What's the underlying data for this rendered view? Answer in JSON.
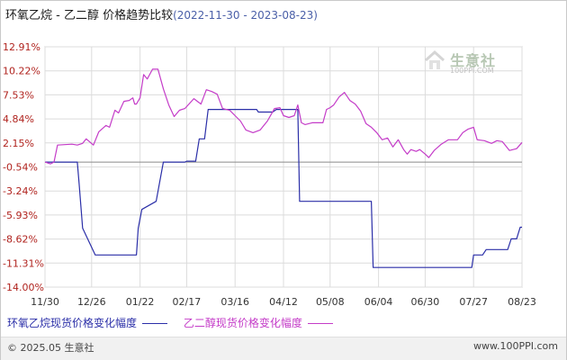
{
  "title": {
    "main": "环氧乙烷 - 乙二醇 价格趋势比较",
    "date_range": "(2022-11-30 - 2023-08-23)"
  },
  "watermark": {
    "text": "生意社",
    "url": "100PPI.COM"
  },
  "footer": {
    "copyright": "© 2025.05 生意社",
    "url": "www.100PPI.com"
  },
  "colors": {
    "series_1": "#2b2fa8",
    "series_2": "#c43cc8",
    "grid": "#dcdcdc",
    "zero_line": "#8a8a8a"
  },
  "chart_data": {
    "type": "line",
    "x_tick_labels": [
      "11/30",
      "12/26",
      "01/22",
      "02/17",
      "03/16",
      "04/12",
      "05/08",
      "06/04",
      "06/30",
      "07/27",
      "08/23"
    ],
    "y_tick_labels": [
      "12.91%",
      "10.22%",
      "7.53%",
      "4.84%",
      "2.15%",
      "-0.54%",
      "-3.24%",
      "-5.93%",
      "-8.62%",
      "-11.31%",
      "-14.00%"
    ],
    "y_ticks": [
      12.91,
      10.22,
      7.53,
      4.84,
      2.15,
      -0.54,
      -3.24,
      -5.93,
      -8.62,
      -11.31,
      -14.0
    ],
    "ylim": [
      -14.0,
      12.91
    ],
    "zero_line": 0,
    "grid": true,
    "legend_position": "bottom-left",
    "series": [
      {
        "name": "环氧乙烷现货价格变化幅度",
        "points": [
          [
            "11/30",
            0
          ],
          [
            "12/18",
            0
          ],
          [
            "12/19",
            -2.4
          ],
          [
            "12/21",
            -7.4
          ],
          [
            "12/28",
            -10.4
          ],
          [
            "01/20",
            -10.4
          ],
          [
            "01/21",
            -7.4
          ],
          [
            "01/23",
            -5.3
          ],
          [
            "01/31",
            -4.4
          ],
          [
            "02/02",
            -2.2
          ],
          [
            "02/04",
            0
          ],
          [
            "02/16",
            0
          ],
          [
            "02/17",
            0.1
          ],
          [
            "02/22",
            0.1
          ],
          [
            "02/24",
            2.6
          ],
          [
            "02/27",
            2.6
          ],
          [
            "03/01",
            5.9
          ],
          [
            "03/28",
            5.9
          ],
          [
            "03/29",
            5.6
          ],
          [
            "04/06",
            5.6
          ],
          [
            "04/08",
            5.9
          ],
          [
            "04/20",
            5.9
          ],
          [
            "04/21",
            -4.4
          ],
          [
            "05/31",
            -4.4
          ],
          [
            "06/01",
            -11.8
          ],
          [
            "07/26",
            -11.8
          ],
          [
            "07/27",
            -10.4
          ],
          [
            "08/01",
            -10.4
          ],
          [
            "08/03",
            -9.8
          ],
          [
            "08/15",
            -9.8
          ],
          [
            "08/17",
            -8.6
          ],
          [
            "08/20",
            -8.6
          ],
          [
            "08/22",
            -7.3
          ],
          [
            "08/23",
            -7.3
          ]
        ]
      },
      {
        "name": "乙二醇现货价格变化幅度",
        "points": [
          [
            "11/30",
            0
          ],
          [
            "12/03",
            -0.2
          ],
          [
            "12/05",
            0
          ],
          [
            "12/07",
            1.9
          ],
          [
            "12/15",
            2.0
          ],
          [
            "12/18",
            1.9
          ],
          [
            "12/21",
            2.1
          ],
          [
            "12/23",
            2.6
          ],
          [
            "12/27",
            1.9
          ],
          [
            "12/30",
            3.4
          ],
          [
            "01/03",
            4.1
          ],
          [
            "01/05",
            3.9
          ],
          [
            "01/08",
            5.8
          ],
          [
            "01/10",
            5.5
          ],
          [
            "01/13",
            6.8
          ],
          [
            "01/16",
            6.9
          ],
          [
            "01/18",
            7.2
          ],
          [
            "01/19",
            6.5
          ],
          [
            "01/20",
            6.5
          ],
          [
            "01/22",
            7.2
          ],
          [
            "01/24",
            9.8
          ],
          [
            "01/26",
            9.3
          ],
          [
            "01/29",
            10.4
          ],
          [
            "02/01",
            10.4
          ],
          [
            "02/04",
            8.2
          ],
          [
            "02/07",
            6.4
          ],
          [
            "02/10",
            5.1
          ],
          [
            "02/13",
            5.8
          ],
          [
            "02/16",
            6.0
          ],
          [
            "02/21",
            7.1
          ],
          [
            "02/25",
            6.5
          ],
          [
            "02/28",
            8.1
          ],
          [
            "03/03",
            7.9
          ],
          [
            "03/06",
            7.6
          ],
          [
            "03/09",
            6.0
          ],
          [
            "03/13",
            5.8
          ],
          [
            "03/16",
            5.2
          ],
          [
            "03/19",
            4.6
          ],
          [
            "03/22",
            3.6
          ],
          [
            "03/26",
            3.3
          ],
          [
            "03/30",
            3.6
          ],
          [
            "04/03",
            4.6
          ],
          [
            "04/07",
            6.0
          ],
          [
            "04/10",
            6.1
          ],
          [
            "04/12",
            5.2
          ],
          [
            "04/15",
            5.0
          ],
          [
            "04/18",
            5.2
          ],
          [
            "04/20",
            6.4
          ],
          [
            "04/22",
            4.4
          ],
          [
            "04/24",
            4.2
          ],
          [
            "04/28",
            4.4
          ],
          [
            "05/04",
            4.4
          ],
          [
            "05/06",
            5.9
          ],
          [
            "05/08",
            6.1
          ],
          [
            "05/10",
            6.4
          ],
          [
            "05/13",
            7.3
          ],
          [
            "05/16",
            7.8
          ],
          [
            "05/19",
            6.9
          ],
          [
            "05/22",
            6.5
          ],
          [
            "05/25",
            5.7
          ],
          [
            "05/28",
            4.3
          ],
          [
            "05/31",
            3.9
          ],
          [
            "06/03",
            3.3
          ],
          [
            "06/06",
            2.5
          ],
          [
            "06/09",
            2.7
          ],
          [
            "06/12",
            1.7
          ],
          [
            "06/15",
            2.5
          ],
          [
            "06/18",
            1.4
          ],
          [
            "06/20",
            0.9
          ],
          [
            "06/22",
            1.4
          ],
          [
            "06/25",
            1.2
          ],
          [
            "06/27",
            1.4
          ],
          [
            "06/30",
            0.9
          ],
          [
            "07/02",
            0.5
          ],
          [
            "07/05",
            1.3
          ],
          [
            "07/09",
            2.0
          ],
          [
            "07/13",
            2.5
          ],
          [
            "07/18",
            2.5
          ],
          [
            "07/21",
            3.3
          ],
          [
            "07/24",
            3.7
          ],
          [
            "07/27",
            3.9
          ],
          [
            "07/29",
            2.5
          ],
          [
            "08/02",
            2.4
          ],
          [
            "08/06",
            2.1
          ],
          [
            "08/09",
            2.4
          ],
          [
            "08/12",
            2.3
          ],
          [
            "08/16",
            1.3
          ],
          [
            "08/20",
            1.5
          ],
          [
            "08/23",
            2.2
          ]
        ]
      }
    ]
  }
}
